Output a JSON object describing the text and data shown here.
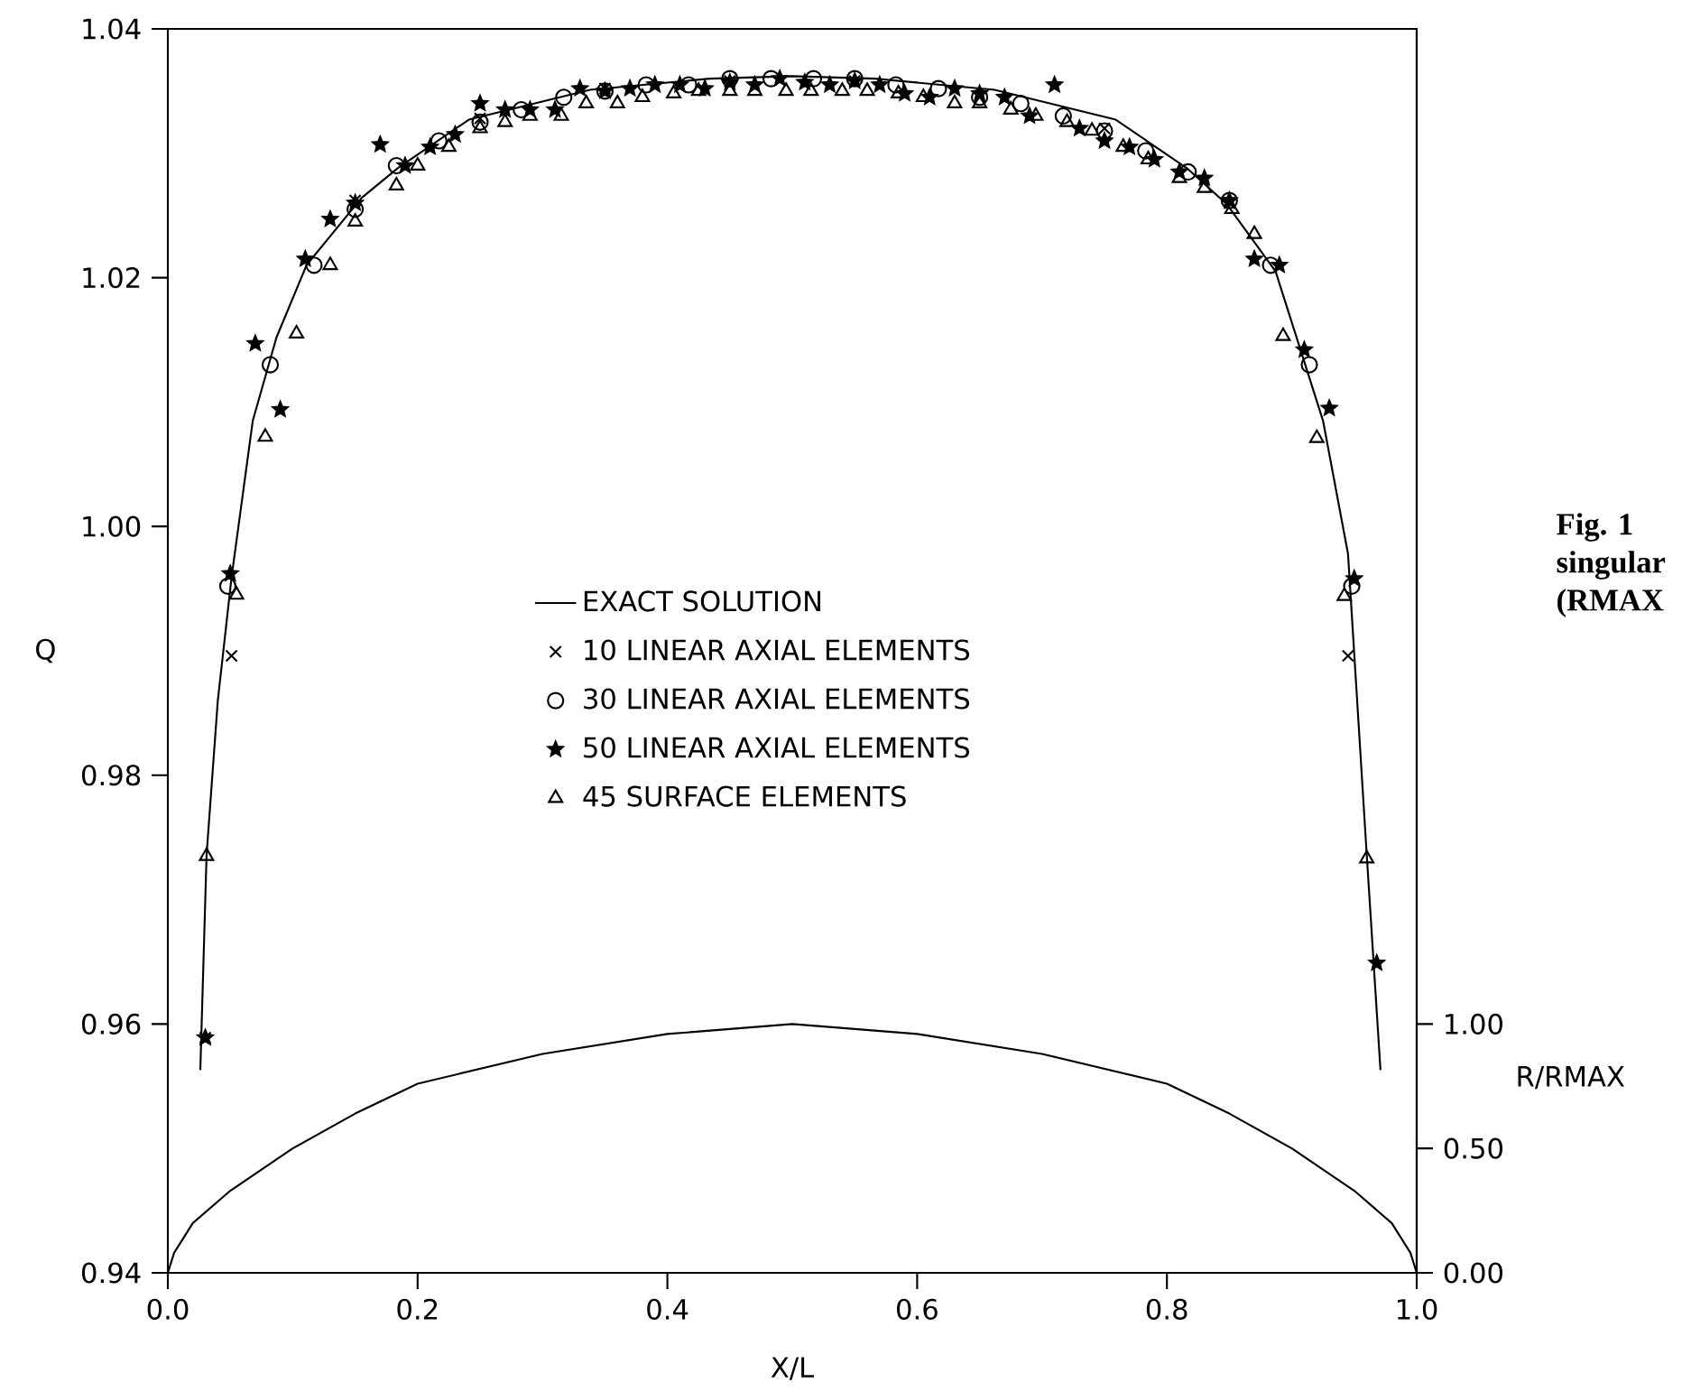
{
  "chart_data": {
    "type": "scatter",
    "xlabel": "X/L",
    "ylabel": "Q",
    "y2label": "R/RMAX",
    "xlim": [
      0,
      1
    ],
    "ylim": [
      0.94,
      1.04
    ],
    "y2lim": [
      0,
      5
    ],
    "xticks": [
      {
        "value": 0,
        "label": "0.0"
      },
      0.2,
      0.4,
      0.6,
      0.8,
      {
        "value": 1,
        "label": "1.0"
      }
    ],
    "yticks": [
      0.94,
      0.96,
      0.98,
      {
        "value": 1.0,
        "label": "1.00"
      },
      1.02,
      1.04
    ],
    "y2ticks": [
      {
        "value": 0,
        "label": "0.00"
      },
      {
        "value": 0.5,
        "label": "0.50"
      },
      {
        "value": 1.0,
        "label": "1.00"
      }
    ],
    "legend": "center",
    "annotations": [
      "Fig. 1",
      "singular",
      "(RMAX"
    ],
    "series": [
      {
        "name": "EXACT SOLUTION",
        "type": "line",
        "marker": "none",
        "color": "#000000",
        "x": [
          0.026,
          0.031,
          0.04,
          0.051,
          0.068,
          0.087,
          0.111,
          0.155,
          0.184,
          0.241,
          0.338,
          0.434,
          0.5,
          0.566,
          0.662,
          0.759,
          0.816,
          0.848,
          0.887,
          0.925,
          0.945,
          0.96,
          0.971
        ],
        "values": [
          0.9563,
          0.9736,
          0.986,
          0.9959,
          1.0085,
          1.0152,
          1.021,
          1.0264,
          1.0288,
          1.0327,
          1.0351,
          1.036,
          1.0362,
          1.036,
          1.0351,
          1.0327,
          1.0288,
          1.0259,
          1.0205,
          1.0085,
          0.9978,
          0.9736,
          0.9563
        ]
      },
      {
        "name": "10 LINEAR AXIAL ELEMENTS",
        "marker": "cross",
        "color": "#000000",
        "x": [
          0.03,
          0.051,
          0.15,
          0.25,
          0.35,
          0.45,
          0.55,
          0.65,
          0.75,
          0.85,
          0.945
        ],
        "values": [
          0.9589,
          0.9896,
          1.0262,
          1.0328,
          1.0352,
          1.0358,
          1.0358,
          1.0345,
          1.032,
          1.026,
          0.9896
        ]
      },
      {
        "name": "30 LINEAR AXIAL ELEMENTS",
        "marker": "circle",
        "color": "#000000",
        "x": [
          0.048,
          0.082,
          0.117,
          0.15,
          0.183,
          0.217,
          0.25,
          0.283,
          0.317,
          0.35,
          0.383,
          0.417,
          0.45,
          0.483,
          0.517,
          0.55,
          0.583,
          0.617,
          0.65,
          0.683,
          0.717,
          0.75,
          0.783,
          0.817,
          0.85,
          0.883,
          0.914,
          0.948
        ],
        "values": [
          0.9952,
          1.013,
          1.021,
          1.0255,
          1.029,
          1.031,
          1.0325,
          1.0335,
          1.0345,
          1.035,
          1.0355,
          1.0355,
          1.036,
          1.036,
          1.036,
          1.036,
          1.0355,
          1.0352,
          1.0345,
          1.034,
          1.033,
          1.0318,
          1.0302,
          1.0285,
          1.0262,
          1.021,
          1.013,
          0.9952
        ]
      },
      {
        "name": "50 LINEAR AXIAL ELEMENTS",
        "marker": "star",
        "color": "#000000",
        "x": [
          0.03,
          0.05,
          0.07,
          0.09,
          0.11,
          0.13,
          0.15,
          0.17,
          0.19,
          0.21,
          0.23,
          0.25,
          0.27,
          0.29,
          0.31,
          0.33,
          0.35,
          0.37,
          0.39,
          0.41,
          0.43,
          0.45,
          0.47,
          0.49,
          0.51,
          0.53,
          0.55,
          0.57,
          0.59,
          0.61,
          0.63,
          0.65,
          0.67,
          0.69,
          0.71,
          0.73,
          0.75,
          0.77,
          0.79,
          0.81,
          0.83,
          0.85,
          0.87,
          0.89,
          0.91,
          0.93,
          0.95,
          0.968
        ],
        "values": [
          0.9589,
          0.9962,
          1.0147,
          1.0094,
          1.0215,
          1.0247,
          1.026,
          1.0307,
          1.029,
          1.0305,
          1.0315,
          1.034,
          1.0335,
          1.0335,
          1.0335,
          1.0352,
          1.035,
          1.0352,
          1.0355,
          1.0355,
          1.0352,
          1.0357,
          1.0355,
          1.036,
          1.0357,
          1.0355,
          1.0358,
          1.0355,
          1.0348,
          1.0345,
          1.0352,
          1.0348,
          1.0345,
          1.033,
          1.0355,
          1.032,
          1.031,
          1.0305,
          1.0295,
          1.0285,
          1.028,
          1.0262,
          1.0215,
          1.021,
          1.0142,
          1.0095,
          0.9958,
          0.9649
        ]
      },
      {
        "name": "45 SURFACE ELEMENTS",
        "marker": "triangle",
        "color": "#000000",
        "x": [
          0.031,
          0.055,
          0.078,
          0.103,
          0.13,
          0.15,
          0.183,
          0.2,
          0.225,
          0.25,
          0.27,
          0.29,
          0.315,
          0.335,
          0.36,
          0.38,
          0.405,
          0.425,
          0.45,
          0.47,
          0.495,
          0.515,
          0.54,
          0.56,
          0.585,
          0.605,
          0.63,
          0.65,
          0.675,
          0.695,
          0.72,
          0.74,
          0.765,
          0.785,
          0.81,
          0.83,
          0.852,
          0.87,
          0.893,
          0.92,
          0.942,
          0.96
        ],
        "values": [
          0.9735,
          0.9945,
          1.0072,
          1.0155,
          1.021,
          1.0245,
          1.0274,
          1.029,
          1.0305,
          1.032,
          1.0325,
          1.033,
          1.033,
          1.034,
          1.034,
          1.0345,
          1.0348,
          1.035,
          1.035,
          1.035,
          1.035,
          1.035,
          1.035,
          1.035,
          1.0348,
          1.0345,
          1.034,
          1.034,
          1.0335,
          1.033,
          1.0325,
          1.0318,
          1.0305,
          1.0295,
          1.028,
          1.0272,
          1.0255,
          1.0235,
          1.0153,
          1.0071,
          0.9944,
          0.9733
        ]
      },
      {
        "type": "line",
        "axis": "y2",
        "marker": "none",
        "color": "#000000",
        "x": [
          0,
          0.005,
          0.02,
          0.05,
          0.1,
          0.15,
          0.2,
          0.3,
          0.4,
          0.5,
          0.6,
          0.7,
          0.8,
          0.85,
          0.9,
          0.95,
          0.98,
          0.995,
          1.0
        ],
        "values": [
          0,
          0.08,
          0.2,
          0.33,
          0.5,
          0.64,
          0.76,
          0.88,
          0.96,
          1.0,
          0.96,
          0.88,
          0.76,
          0.64,
          0.5,
          0.33,
          0.2,
          0.08,
          0
        ]
      }
    ]
  }
}
